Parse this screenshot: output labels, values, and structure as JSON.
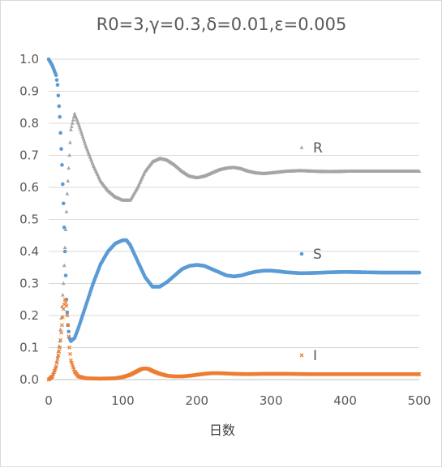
{
  "chart_data": {
    "type": "scatter",
    "title": "R0=3,γ=0.3,δ=0.01,ε=0.005",
    "xlabel": "日数",
    "ylabel": "",
    "xlim": [
      0,
      500
    ],
    "ylim": [
      0,
      1.0
    ],
    "x_ticks": [
      "0",
      "100",
      "200",
      "300",
      "400",
      "500"
    ],
    "y_ticks": [
      "0.0",
      "0.1",
      "0.2",
      "0.3",
      "0.4",
      "0.5",
      "0.6",
      "0.7",
      "0.8",
      "0.9",
      "1.0"
    ],
    "grid": "horizontal",
    "legend": "inline-right",
    "series": [
      {
        "name": "R",
        "color": "#a5a5a5",
        "marker": "triangle",
        "points": [
          [
            0,
            0
          ],
          [
            5,
            0.01
          ],
          [
            10,
            0.04
          ],
          [
            15,
            0.12
          ],
          [
            20,
            0.3
          ],
          [
            25,
            0.58
          ],
          [
            30,
            0.78
          ],
          [
            35,
            0.83
          ],
          [
            40,
            0.8
          ],
          [
            50,
            0.73
          ],
          [
            60,
            0.67
          ],
          [
            70,
            0.62
          ],
          [
            80,
            0.59
          ],
          [
            90,
            0.57
          ],
          [
            100,
            0.56
          ],
          [
            110,
            0.56
          ],
          [
            120,
            0.6
          ],
          [
            130,
            0.65
          ],
          [
            140,
            0.68
          ],
          [
            150,
            0.69
          ],
          [
            160,
            0.685
          ],
          [
            170,
            0.67
          ],
          [
            180,
            0.65
          ],
          [
            190,
            0.635
          ],
          [
            200,
            0.63
          ],
          [
            210,
            0.635
          ],
          [
            220,
            0.645
          ],
          [
            230,
            0.655
          ],
          [
            240,
            0.66
          ],
          [
            250,
            0.662
          ],
          [
            260,
            0.658
          ],
          [
            270,
            0.65
          ],
          [
            280,
            0.645
          ],
          [
            290,
            0.643
          ],
          [
            300,
            0.645
          ],
          [
            320,
            0.65
          ],
          [
            340,
            0.652
          ],
          [
            360,
            0.65
          ],
          [
            380,
            0.649
          ],
          [
            400,
            0.65
          ],
          [
            450,
            0.65
          ],
          [
            500,
            0.65
          ]
        ]
      },
      {
        "name": "S",
        "color": "#5b9bd5",
        "marker": "circle",
        "points": [
          [
            0,
            1.0
          ],
          [
            5,
            0.98
          ],
          [
            10,
            0.95
          ],
          [
            12,
            0.92
          ],
          [
            15,
            0.82
          ],
          [
            18,
            0.67
          ],
          [
            20,
            0.55
          ],
          [
            22,
            0.4
          ],
          [
            24,
            0.25
          ],
          [
            26,
            0.17
          ],
          [
            28,
            0.13
          ],
          [
            30,
            0.12
          ],
          [
            35,
            0.13
          ],
          [
            40,
            0.16
          ],
          [
            50,
            0.23
          ],
          [
            60,
            0.3
          ],
          [
            70,
            0.36
          ],
          [
            80,
            0.4
          ],
          [
            90,
            0.425
          ],
          [
            100,
            0.435
          ],
          [
            105,
            0.435
          ],
          [
            110,
            0.42
          ],
          [
            120,
            0.37
          ],
          [
            130,
            0.32
          ],
          [
            140,
            0.29
          ],
          [
            150,
            0.29
          ],
          [
            160,
            0.305
          ],
          [
            170,
            0.325
          ],
          [
            180,
            0.345
          ],
          [
            190,
            0.355
          ],
          [
            200,
            0.358
          ],
          [
            210,
            0.355
          ],
          [
            220,
            0.345
          ],
          [
            230,
            0.335
          ],
          [
            240,
            0.325
          ],
          [
            250,
            0.322
          ],
          [
            260,
            0.325
          ],
          [
            270,
            0.332
          ],
          [
            280,
            0.337
          ],
          [
            290,
            0.34
          ],
          [
            300,
            0.34
          ],
          [
            310,
            0.338
          ],
          [
            320,
            0.335
          ],
          [
            340,
            0.332
          ],
          [
            360,
            0.333
          ],
          [
            380,
            0.335
          ],
          [
            400,
            0.336
          ],
          [
            450,
            0.334
          ],
          [
            500,
            0.334
          ]
        ]
      },
      {
        "name": "I",
        "color": "#ed7d31",
        "marker": "x",
        "points": [
          [
            0,
            0.0
          ],
          [
            5,
            0.01
          ],
          [
            10,
            0.04
          ],
          [
            15,
            0.1
          ],
          [
            18,
            0.17
          ],
          [
            20,
            0.22
          ],
          [
            22,
            0.25
          ],
          [
            24,
            0.23
          ],
          [
            26,
            0.17
          ],
          [
            28,
            0.1
          ],
          [
            30,
            0.06
          ],
          [
            35,
            0.025
          ],
          [
            40,
            0.01
          ],
          [
            50,
            0.004
          ],
          [
            70,
            0.003
          ],
          [
            90,
            0.004
          ],
          [
            100,
            0.008
          ],
          [
            110,
            0.015
          ],
          [
            120,
            0.027
          ],
          [
            125,
            0.033
          ],
          [
            130,
            0.035
          ],
          [
            135,
            0.033
          ],
          [
            140,
            0.027
          ],
          [
            150,
            0.018
          ],
          [
            160,
            0.012
          ],
          [
            170,
            0.01
          ],
          [
            180,
            0.01
          ],
          [
            190,
            0.012
          ],
          [
            200,
            0.015
          ],
          [
            210,
            0.018
          ],
          [
            220,
            0.02
          ],
          [
            230,
            0.02
          ],
          [
            240,
            0.019
          ],
          [
            250,
            0.018
          ],
          [
            270,
            0.017
          ],
          [
            290,
            0.018
          ],
          [
            300,
            0.018
          ],
          [
            320,
            0.018
          ],
          [
            350,
            0.017
          ],
          [
            400,
            0.017
          ],
          [
            450,
            0.017
          ],
          [
            500,
            0.017
          ]
        ]
      }
    ]
  }
}
